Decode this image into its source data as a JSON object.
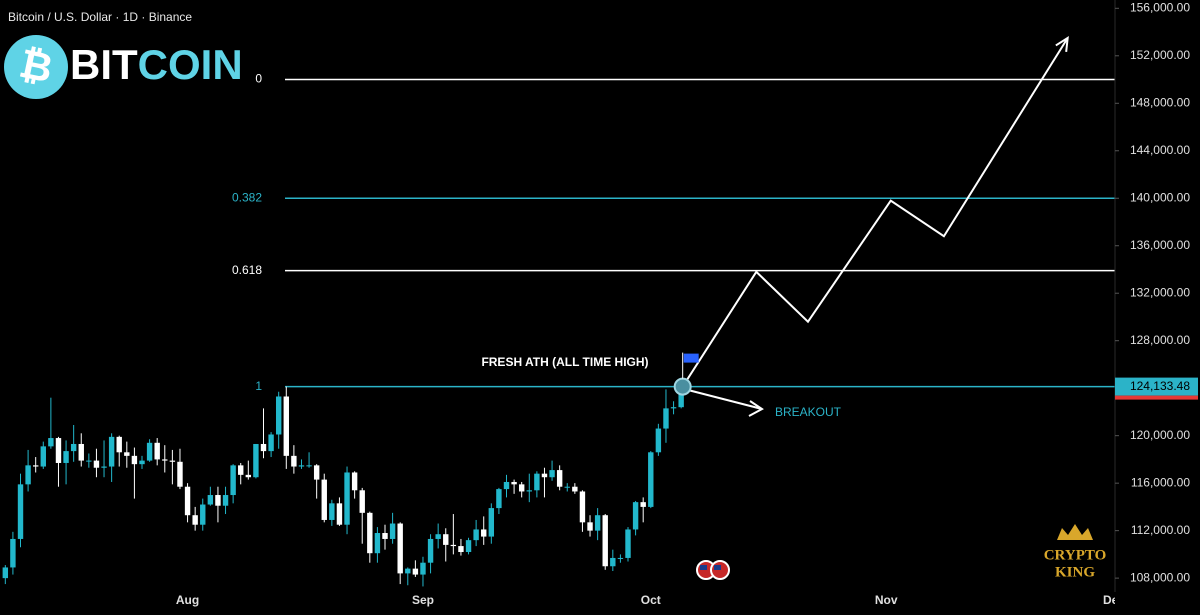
{
  "header": {
    "title": "Bitcoin / U.S. Dollar · 1D · Binance",
    "logo_left": "BIT",
    "logo_right": "COIN",
    "watermark_top": "CRYPTO",
    "watermark_bottom": "KING"
  },
  "chart_data": {
    "type": "candlestick",
    "up_color": "#22b8cc",
    "down_color": "#ffffff",
    "ohlc": [
      [
        108000,
        109100,
        107500,
        108900
      ],
      [
        108900,
        111900,
        108300,
        111300
      ],
      [
        111300,
        116800,
        110600,
        115900
      ],
      [
        115900,
        118800,
        115300,
        117500
      ],
      [
        117500,
        118200,
        116900,
        117400
      ],
      [
        117400,
        119500,
        117200,
        119100
      ],
      [
        119100,
        123200,
        118900,
        119800
      ],
      [
        119800,
        119900,
        115700,
        117700
      ],
      [
        117700,
        119600,
        115900,
        118700
      ],
      [
        118700,
        120900,
        117800,
        119300
      ],
      [
        119300,
        120200,
        117400,
        117900
      ],
      [
        117900,
        118500,
        117300,
        117900
      ],
      [
        117900,
        118900,
        116500,
        117300
      ],
      [
        117300,
        119600,
        116500,
        117400
      ],
      [
        117400,
        120200,
        116100,
        119900
      ],
      [
        119900,
        120000,
        117400,
        118600
      ],
      [
        118600,
        119500,
        117300,
        118300
      ],
      [
        118300,
        119000,
        114700,
        117600
      ],
      [
        117600,
        118300,
        117200,
        117900
      ],
      [
        117900,
        119700,
        117800,
        119400
      ],
      [
        119400,
        119800,
        117500,
        118000
      ],
      [
        118000,
        119200,
        116900,
        117900
      ],
      [
        117900,
        118800,
        115900,
        117800
      ],
      [
        117800,
        118900,
        115500,
        115700
      ],
      [
        115700,
        116000,
        112700,
        113300
      ],
      [
        113300,
        114000,
        112000,
        112500
      ],
      [
        112500,
        114700,
        112000,
        114200
      ],
      [
        114200,
        115700,
        114100,
        115000
      ],
      [
        115000,
        115700,
        112700,
        114100
      ],
      [
        114100,
        115700,
        113400,
        115000
      ],
      [
        115000,
        117600,
        114300,
        117500
      ],
      [
        117500,
        117700,
        115900,
        116700
      ],
      [
        116700,
        117900,
        116300,
        116500
      ],
      [
        116500,
        119300,
        116400,
        119300
      ],
      [
        119300,
        122300,
        118100,
        118700
      ],
      [
        118700,
        120300,
        118200,
        120100
      ],
      [
        120100,
        123700,
        118900,
        123300
      ],
      [
        123300,
        124133.48,
        117200,
        118300
      ],
      [
        118300,
        119200,
        116800,
        117400
      ],
      [
        117400,
        118000,
        117200,
        117500
      ],
      [
        117500,
        118600,
        117300,
        117500
      ],
      [
        117500,
        117600,
        114700,
        116300
      ],
      [
        116300,
        116800,
        112700,
        112900
      ],
      [
        112900,
        114600,
        112400,
        114300
      ],
      [
        114300,
        114800,
        112400,
        112500
      ],
      [
        112500,
        117400,
        111700,
        116900
      ],
      [
        116900,
        117000,
        114700,
        115400
      ],
      [
        115400,
        115600,
        110900,
        113500
      ],
      [
        113500,
        113600,
        109300,
        110100
      ],
      [
        110100,
        112300,
        109300,
        111800
      ],
      [
        111800,
        112500,
        110400,
        111300
      ],
      [
        111300,
        113500,
        110900,
        112600
      ],
      [
        112600,
        112700,
        107500,
        108400
      ],
      [
        108400,
        108900,
        107400,
        108800
      ],
      [
        108800,
        109500,
        108100,
        108300
      ],
      [
        108300,
        109800,
        107300,
        109300
      ],
      [
        109300,
        111700,
        108400,
        111300
      ],
      [
        111300,
        112600,
        110500,
        111700
      ],
      [
        111700,
        112200,
        109400,
        110800
      ],
      [
        110800,
        113400,
        110000,
        110700
      ],
      [
        110700,
        111300,
        109900,
        110200
      ],
      [
        110200,
        111400,
        110000,
        111200
      ],
      [
        111200,
        112900,
        110700,
        112100
      ],
      [
        112100,
        113200,
        110800,
        111500
      ],
      [
        111500,
        114300,
        110900,
        113900
      ],
      [
        113900,
        115600,
        113400,
        115500
      ],
      [
        115500,
        116700,
        114800,
        116100
      ],
      [
        116100,
        116300,
        115100,
        115900
      ],
      [
        115900,
        116100,
        114800,
        115300
      ],
      [
        115300,
        116800,
        114400,
        115400
      ],
      [
        115400,
        117000,
        114800,
        116800
      ],
      [
        116800,
        117300,
        114800,
        116500
      ],
      [
        116500,
        117900,
        116200,
        117100
      ],
      [
        117100,
        117500,
        115400,
        115700
      ],
      [
        115700,
        116000,
        115300,
        115700
      ],
      [
        115700,
        116000,
        115100,
        115300
      ],
      [
        115300,
        115400,
        111900,
        112700
      ],
      [
        112700,
        113300,
        111500,
        112000
      ],
      [
        112000,
        113900,
        111200,
        113300
      ],
      [
        113300,
        113400,
        108700,
        109000
      ],
      [
        109000,
        110400,
        108600,
        109700
      ],
      [
        109700,
        110000,
        109300,
        109700
      ],
      [
        109700,
        112300,
        109400,
        112100
      ],
      [
        112100,
        114500,
        111600,
        114400
      ],
      [
        114400,
        114800,
        112700,
        114000
      ],
      [
        114000,
        118700,
        113900,
        118600
      ],
      [
        118600,
        121000,
        118300,
        120600
      ],
      [
        120600,
        123900,
        119400,
        122300
      ],
      [
        122300,
        122900,
        121800,
        122400
      ],
      [
        122400,
        124100,
        122300,
        123500
      ]
    ],
    "xlim": [
      -0.7,
      146
    ],
    "xticks": [
      {
        "value": 24,
        "label": "Aug"
      },
      {
        "value": 55,
        "label": "Sep"
      },
      {
        "value": 85,
        "label": "Oct"
      },
      {
        "value": 116,
        "label": "Nov"
      },
      {
        "value": 146,
        "label": "Dec"
      }
    ],
    "ylim": [
      107000,
      156700
    ],
    "yticks": [
      {
        "value": 108000,
        "label": "108,000.00"
      },
      {
        "value": 112000,
        "label": "112,000.00"
      },
      {
        "value": 116000,
        "label": "116,000.00"
      },
      {
        "value": 120000,
        "label": "120,000.00"
      },
      {
        "value": 124000,
        "label": "124,000.00"
      },
      {
        "value": 128000,
        "label": "128,000.00"
      },
      {
        "value": 132000,
        "label": "132,000.00"
      },
      {
        "value": 136000,
        "label": "136,000.00"
      },
      {
        "value": 140000,
        "label": "140,000.00"
      },
      {
        "value": 144000,
        "label": "144,000.00"
      },
      {
        "value": 148000,
        "label": "148,000.00"
      },
      {
        "value": 152000,
        "label": "152,000.00"
      },
      {
        "value": 156000,
        "label": "156,000.00"
      }
    ],
    "last_price": {
      "value": 124133.48,
      "label": "124,133.48"
    },
    "fib_levels": [
      {
        "level": 0,
        "price": 150000,
        "color": "#ffffff"
      },
      {
        "level": 0.382,
        "price": 140000,
        "color": "#2bb3c8"
      },
      {
        "level": 0.618,
        "price": 133900,
        "color": "#ffffff"
      },
      {
        "level": 1,
        "price": 124133.48,
        "color": "#2bb3c8"
      }
    ],
    "projection": {
      "x": [
        89.2,
        98.9,
        105.7,
        116.6,
        123.6,
        139.9
      ],
      "y": [
        124133.48,
        133800,
        129600,
        139800,
        136800,
        153500
      ],
      "color": "#ffffff"
    },
    "annotations": {
      "ath": "FRESH ATH (ALL TIME HIGH)",
      "breakout": "BREAKOUT"
    }
  }
}
